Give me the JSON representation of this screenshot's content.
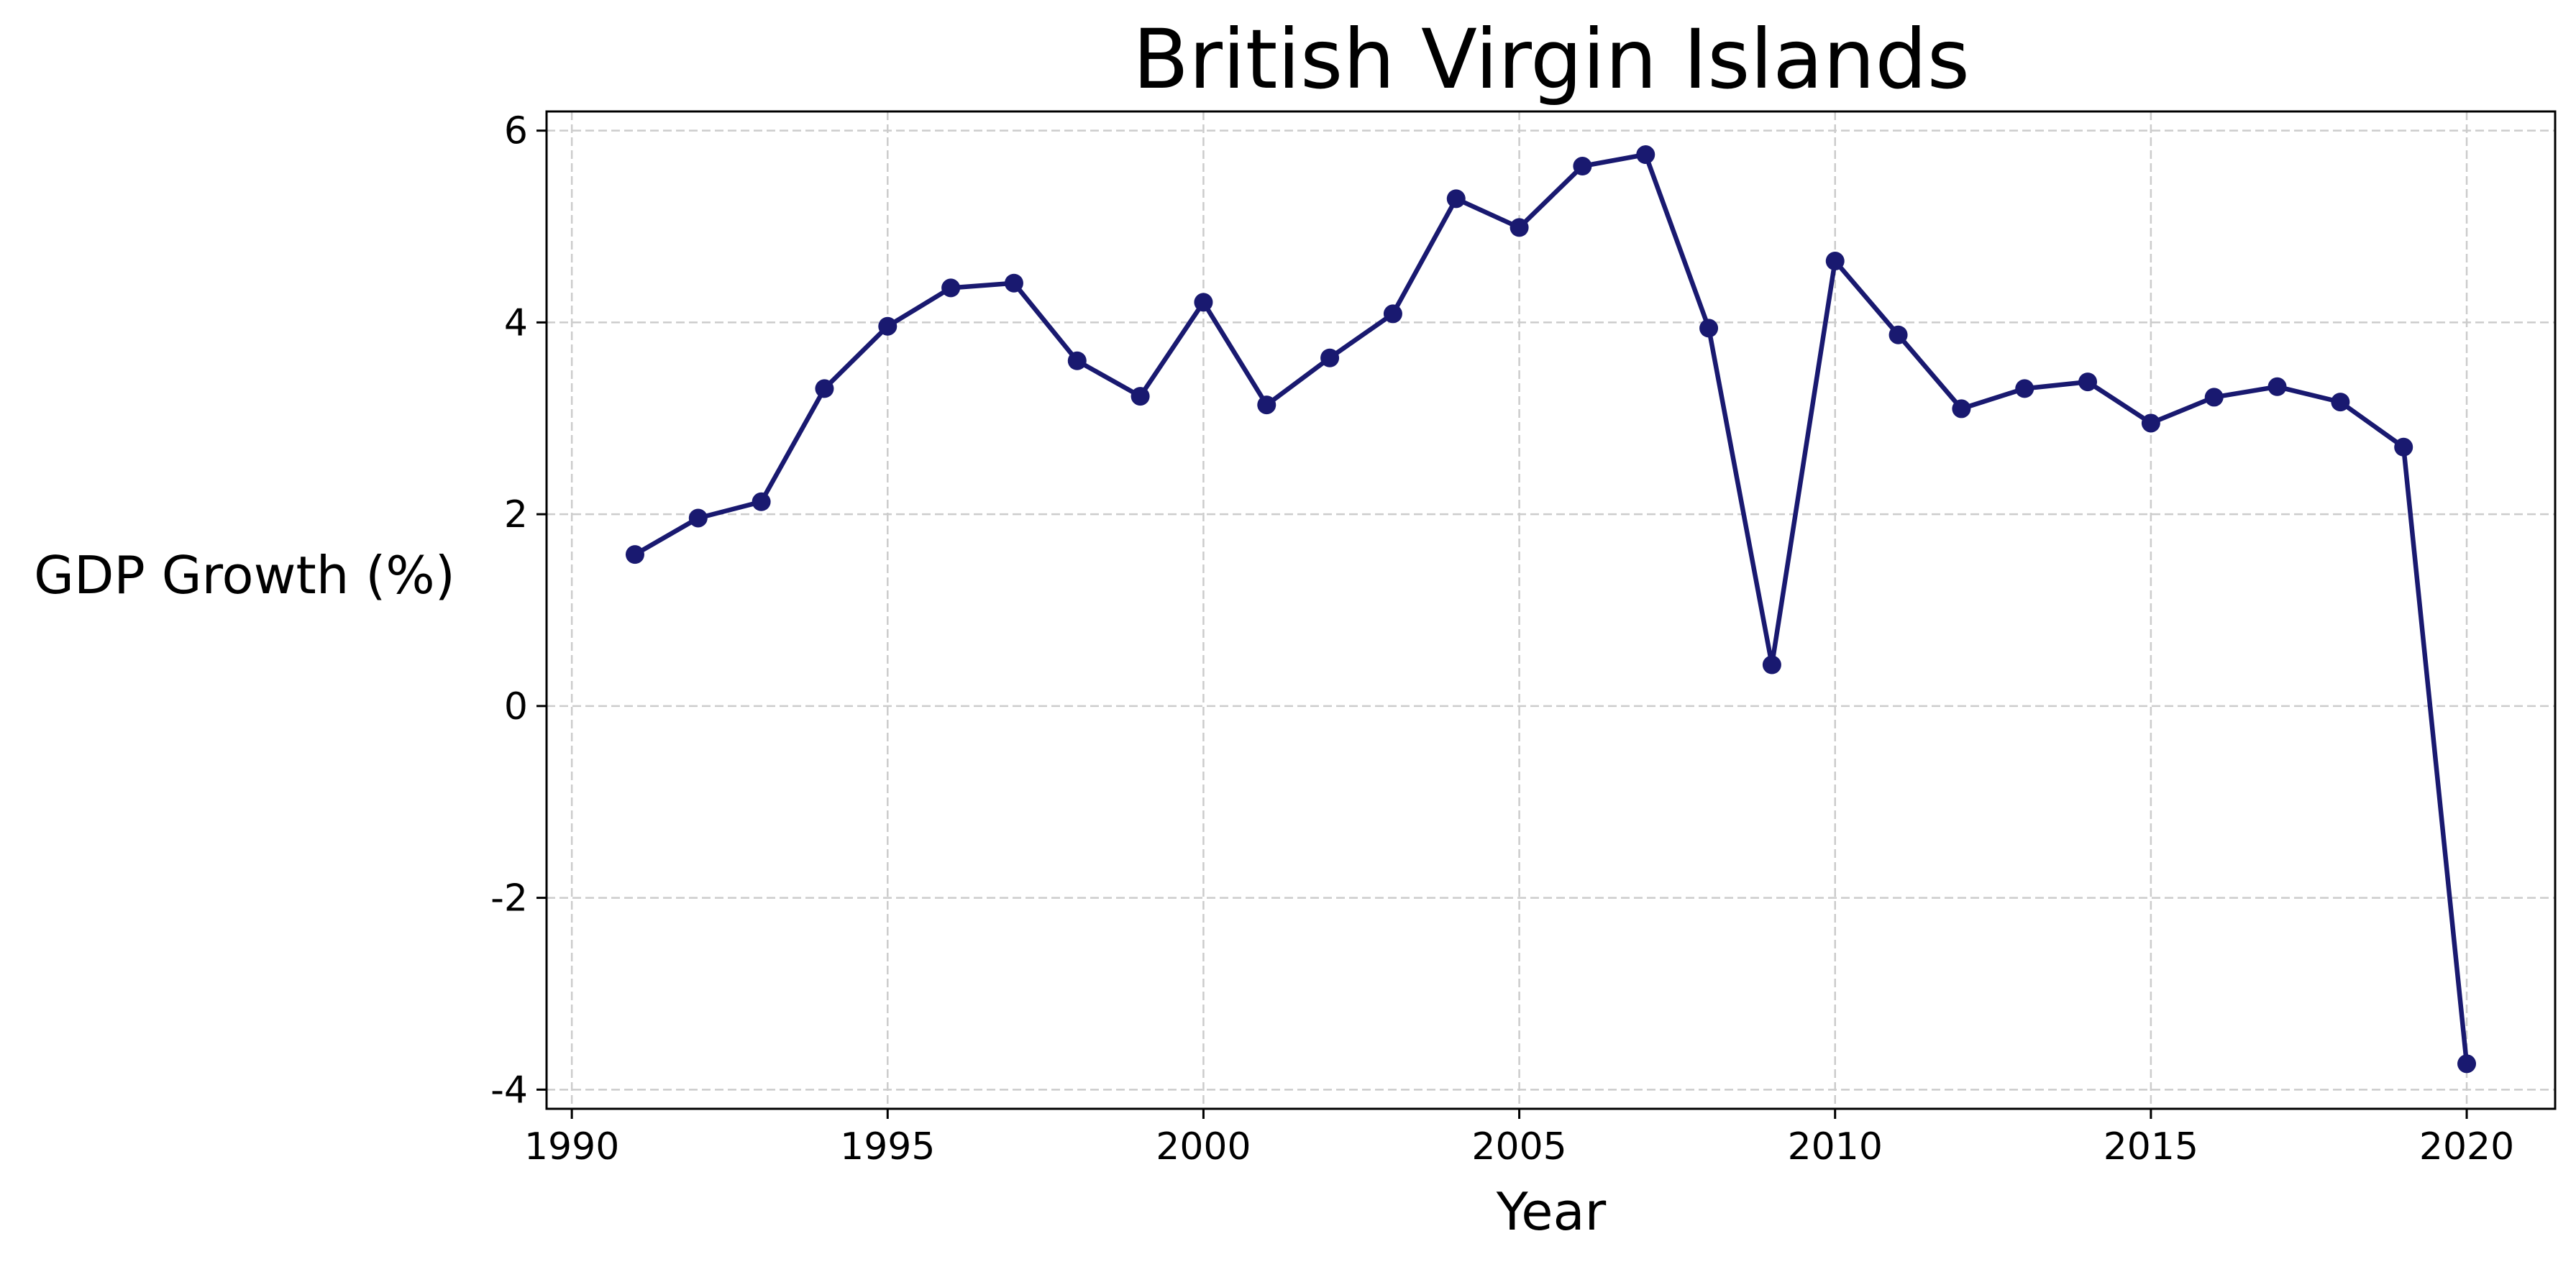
{
  "chart_data": {
    "type": "line",
    "title": "British Virgin Islands",
    "xlabel": "Year",
    "ylabel": "GDP Growth (%)",
    "xlim": [
      1989.6,
      2021.4
    ],
    "ylim": [
      -4.2,
      6.2
    ],
    "xticks": [
      1990,
      1995,
      2000,
      2005,
      2010,
      2015,
      2020
    ],
    "yticks": [
      -4,
      -2,
      0,
      2,
      4,
      6
    ],
    "grid": true,
    "grid_style": "dashed",
    "line_color": "#191970",
    "marker": "circle",
    "x": [
      1991,
      1992,
      1993,
      1994,
      1995,
      1996,
      1997,
      1998,
      1999,
      2000,
      2001,
      2002,
      2003,
      2004,
      2005,
      2006,
      2007,
      2008,
      2009,
      2010,
      2011,
      2012,
      2013,
      2014,
      2015,
      2016,
      2017,
      2018,
      2019,
      2020
    ],
    "values": [
      1.58,
      1.96,
      2.13,
      3.31,
      3.96,
      4.36,
      4.41,
      3.6,
      3.23,
      4.21,
      3.14,
      3.63,
      4.09,
      5.29,
      4.99,
      5.63,
      5.75,
      3.94,
      0.43,
      4.64,
      3.87,
      3.1,
      3.31,
      3.38,
      2.95,
      3.22,
      3.33,
      3.17,
      2.7,
      -3.73
    ]
  }
}
